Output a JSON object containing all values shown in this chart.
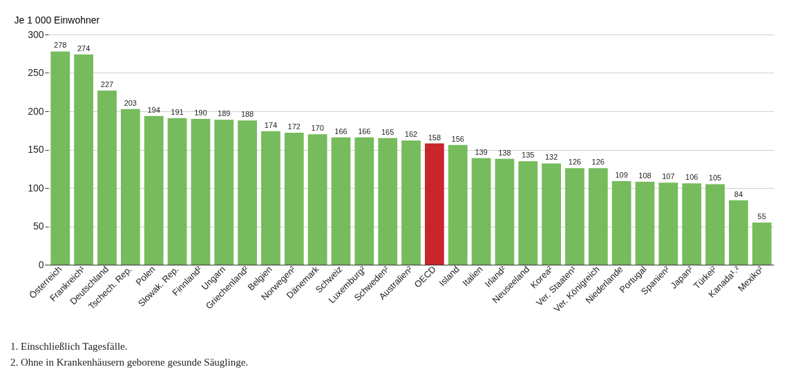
{
  "chart_data": {
    "type": "bar",
    "ylabel": "Je 1 000 Einwohner",
    "categories": [
      "Österreich",
      "Frankreich¹",
      "Deutschland",
      "Tschech. Rep.",
      "Polen",
      "Slowak. Rep.",
      "Finnland²",
      "Ungarn",
      "Griechenland²",
      "Belgien",
      "Norwegen²",
      "Dänemark",
      "Schweiz",
      "Luxemburg²",
      "Schweden²",
      "Australien²",
      "OECD",
      "Island",
      "Italien",
      "Irland²",
      "Neuseeland",
      "Korea²",
      "Ver. Staaten¹",
      "Ver. Königreich",
      "Niederlande",
      "Portugal",
      "Spanien²",
      "Japan²",
      "Türkei²",
      "Kanada¹˒²",
      "Mexiko²"
    ],
    "values": [
      278,
      274,
      227,
      203,
      194,
      191,
      190,
      189,
      188,
      174,
      172,
      170,
      166,
      166,
      165,
      162,
      158,
      156,
      139,
      138,
      135,
      132,
      126,
      126,
      109,
      108,
      107,
      106,
      105,
      84,
      55
    ],
    "colors": [
      "#76bb5c",
      "#76bb5c",
      "#76bb5c",
      "#76bb5c",
      "#76bb5c",
      "#76bb5c",
      "#76bb5c",
      "#76bb5c",
      "#76bb5c",
      "#76bb5c",
      "#76bb5c",
      "#76bb5c",
      "#76bb5c",
      "#76bb5c",
      "#76bb5c",
      "#76bb5c",
      "#c8252c",
      "#76bb5c",
      "#76bb5c",
      "#76bb5c",
      "#76bb5c",
      "#76bb5c",
      "#76bb5c",
      "#76bb5c",
      "#76bb5c",
      "#76bb5c",
      "#76bb5c",
      "#76bb5c",
      "#76bb5c",
      "#76bb5c",
      "#76bb5c"
    ],
    "ylim": [
      0,
      300
    ],
    "yticks": [
      0,
      50,
      100,
      150,
      200,
      250,
      300
    ],
    "grid": "y",
    "data_labels": true,
    "annotations": [
      "1.  Einschließlich Tagesfälle.",
      "2.  Ohne in Krankenhäusern geborene gesunde Säuglinge."
    ]
  }
}
